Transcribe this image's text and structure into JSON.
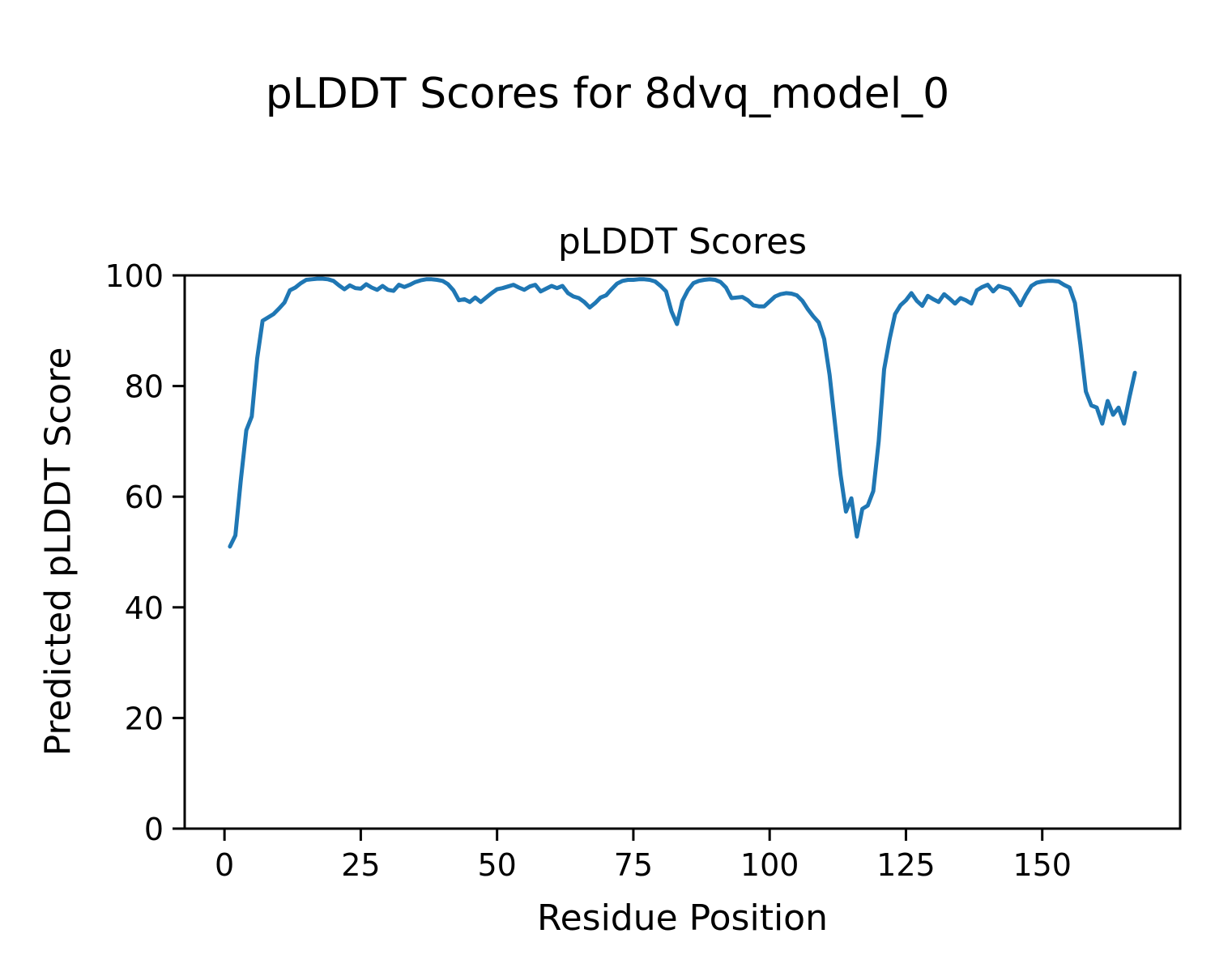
{
  "figure": {
    "suptitle": "pLDDT Scores for 8dvq_model_0",
    "axes_title": "pLDDT Scores",
    "xlabel": "Residue Position",
    "ylabel": "Predicted pLDDT Score"
  },
  "colors": {
    "line": "#1f77b4",
    "spine": "#000000",
    "background": "#ffffff",
    "text": "#000000"
  },
  "chart_data": {
    "type": "line",
    "title": "pLDDT Scores",
    "xlabel": "Residue Position",
    "ylabel": "Predicted pLDDT Score",
    "x_ticks": [
      0,
      25,
      50,
      75,
      100,
      125,
      150
    ],
    "y_ticks": [
      0,
      20,
      40,
      60,
      80,
      100
    ],
    "xlim": [
      -7.3,
      175.3
    ],
    "ylim": [
      0,
      100
    ],
    "grid": false,
    "legend": "none",
    "series": [
      {
        "name": "pLDDT",
        "color": "#1f77b4",
        "x_start": 1,
        "x_step": 1,
        "y": [
          51.0,
          53.0,
          63.0,
          72.0,
          74.5,
          85.0,
          91.8,
          92.4,
          93.0,
          94.0,
          95.1,
          97.3,
          97.8,
          98.6,
          99.2,
          99.3,
          99.4,
          99.4,
          99.3,
          99.0,
          98.2,
          97.5,
          98.2,
          97.7,
          97.6,
          98.4,
          97.8,
          97.4,
          98.1,
          97.4,
          97.2,
          98.3,
          97.9,
          98.3,
          98.8,
          99.1,
          99.3,
          99.3,
          99.2,
          99.0,
          98.4,
          97.3,
          95.5,
          95.7,
          95.2,
          96.0,
          95.2,
          96.0,
          96.8,
          97.5,
          97.7,
          98.0,
          98.3,
          97.8,
          97.4,
          98.0,
          98.3,
          97.1,
          97.6,
          98.1,
          97.7,
          98.1,
          96.8,
          96.2,
          95.9,
          95.2,
          94.2,
          95.0,
          96.0,
          96.4,
          97.5,
          98.5,
          99.0,
          99.2,
          99.2,
          99.3,
          99.3,
          99.2,
          98.9,
          98.1,
          97.1,
          93.5,
          91.2,
          95.4,
          97.3,
          98.6,
          99.0,
          99.2,
          99.3,
          99.2,
          98.8,
          97.8,
          95.9,
          96.0,
          96.1,
          95.5,
          94.6,
          94.4,
          94.4,
          95.3,
          96.2,
          96.6,
          96.8,
          96.7,
          96.4,
          95.4,
          93.9,
          92.6,
          91.5,
          88.5,
          82.0,
          73.0,
          64.0,
          57.3,
          59.7,
          52.8,
          57.8,
          58.4,
          61.0,
          70.0,
          83.0,
          88.5,
          93.0,
          94.6,
          95.5,
          96.8,
          95.4,
          94.5,
          96.3,
          95.7,
          95.2,
          96.6,
          95.8,
          94.9,
          95.9,
          95.5,
          94.9,
          97.3,
          97.9,
          98.3,
          97.1,
          98.1,
          97.8,
          97.5,
          96.2,
          94.6,
          96.5,
          98.1,
          98.7,
          98.9,
          99.0,
          99.0,
          98.9,
          98.3,
          97.8,
          95.0,
          87.5,
          79.0,
          76.5,
          76.1,
          73.2,
          77.3,
          74.8,
          76.1,
          73.2,
          78.0,
          82.4
        ]
      }
    ]
  }
}
